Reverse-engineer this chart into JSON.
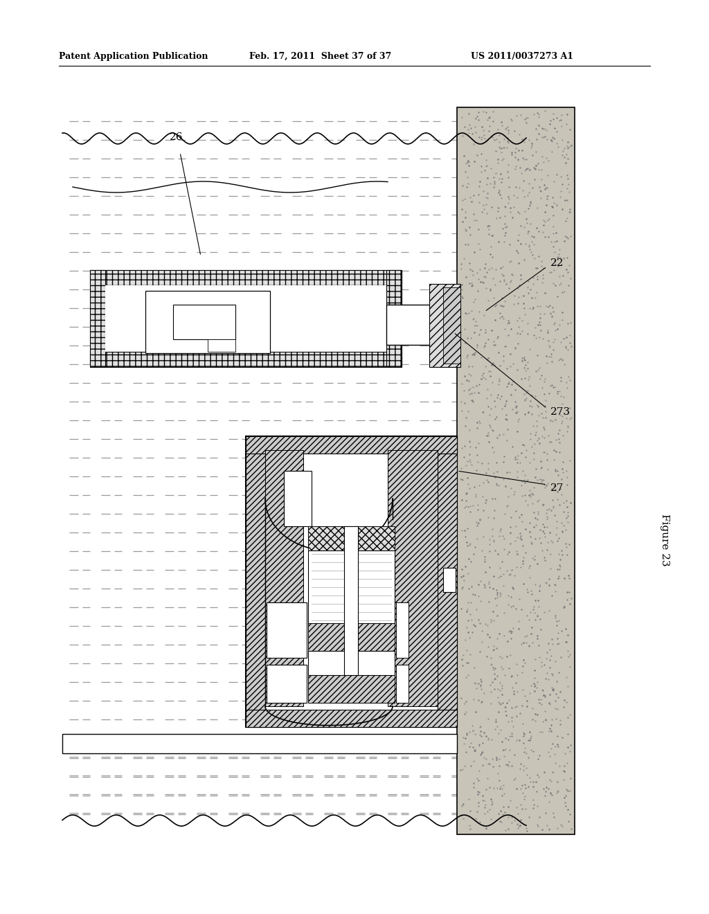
{
  "title_left": "Patent Application Publication",
  "title_mid": "Feb. 17, 2011  Sheet 37 of 37",
  "title_right": "US 2011/0037273 A1",
  "figure_label": "Figure 23",
  "bg_color": "#ffffff",
  "line_color": "#000000",
  "water_dash_color": "#888888",
  "rock_color": "#c8c4b8",
  "hatch_color": "#555555"
}
